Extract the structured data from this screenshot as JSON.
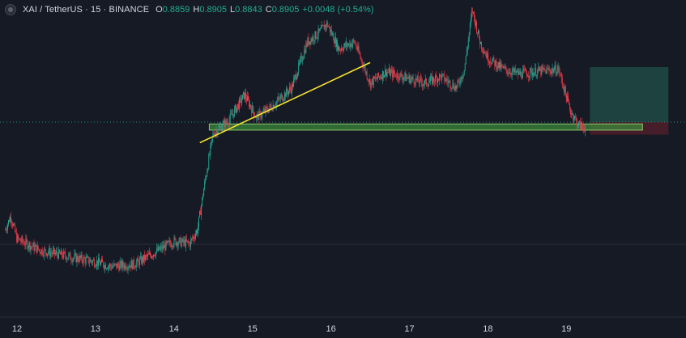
{
  "header": {
    "symbol_title": "XAI / TetherUS · 15 · BINANCE",
    "ohlc": [
      {
        "key": "O",
        "value": "0.8859"
      },
      {
        "key": "H",
        "value": "0.8905"
      },
      {
        "key": "L",
        "value": "0.8843"
      },
      {
        "key": "C",
        "value": "0.8905"
      }
    ],
    "change": "+0.0048 (+0.54%)"
  },
  "colors": {
    "background": "#161a25",
    "up": "#22ab94",
    "down": "#f23645",
    "trendline": "#f5e12b",
    "zone": "#3c8a3a",
    "target": "#1f4a44",
    "stop": "#4a1f2a"
  },
  "chart_data": {
    "type": "candlestick",
    "timeframe": "15",
    "exchange": "BINANCE",
    "x_tick_labels": [
      "12",
      "13",
      "14",
      "15",
      "16",
      "17",
      "18",
      "19"
    ],
    "grid": false,
    "close_path": [
      [
        11.85,
        0.776
      ],
      [
        11.92,
        0.782
      ],
      [
        12.0,
        0.772
      ],
      [
        12.3,
        0.767
      ],
      [
        12.7,
        0.764
      ],
      [
        13.0,
        0.762
      ],
      [
        13.2,
        0.76
      ],
      [
        13.5,
        0.761
      ],
      [
        13.7,
        0.765
      ],
      [
        13.85,
        0.768
      ],
      [
        14.0,
        0.771
      ],
      [
        14.2,
        0.77
      ],
      [
        14.3,
        0.776
      ],
      [
        14.4,
        0.798
      ],
      [
        14.5,
        0.818
      ],
      [
        14.7,
        0.824
      ],
      [
        14.9,
        0.835
      ],
      [
        15.05,
        0.825
      ],
      [
        15.25,
        0.83
      ],
      [
        15.5,
        0.838
      ],
      [
        15.7,
        0.858
      ],
      [
        15.85,
        0.862
      ],
      [
        15.95,
        0.866
      ],
      [
        16.1,
        0.855
      ],
      [
        16.3,
        0.858
      ],
      [
        16.5,
        0.84
      ],
      [
        16.7,
        0.845
      ],
      [
        16.9,
        0.843
      ],
      [
        17.2,
        0.84
      ],
      [
        17.4,
        0.843
      ],
      [
        17.6,
        0.838
      ],
      [
        17.7,
        0.846
      ],
      [
        17.8,
        0.872
      ],
      [
        17.9,
        0.858
      ],
      [
        18.0,
        0.851
      ],
      [
        18.2,
        0.846
      ],
      [
        18.4,
        0.844
      ],
      [
        18.6,
        0.845
      ],
      [
        18.9,
        0.846
      ],
      [
        19.05,
        0.828
      ],
      [
        19.15,
        0.822
      ],
      [
        19.25,
        0.8205
      ]
    ],
    "trendline": [
      [
        14.33,
        0.814
      ],
      [
        16.5,
        0.849
      ]
    ],
    "support_zone": {
      "x_start": 14.45,
      "x_end": 19.97,
      "y_low": 0.8195,
      "y_high": 0.8222
    },
    "long_position": {
      "x_start": 19.3,
      "x_end": 20.3,
      "entry": 0.823,
      "target": 0.847,
      "stop": 0.8175
    },
    "last_price_line": 0.823
  }
}
